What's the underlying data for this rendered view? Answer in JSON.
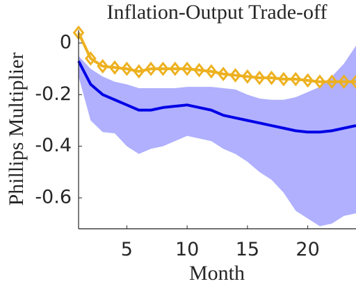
{
  "chart_data": {
    "type": "line",
    "title": "Inflation-Output Trade-off",
    "xlabel": "Month",
    "ylabel": "Phillips Multiplier",
    "x": [
      1,
      2,
      3,
      4,
      5,
      6,
      7,
      8,
      9,
      10,
      11,
      12,
      13,
      14,
      15,
      16,
      17,
      18,
      19,
      20,
      21,
      22,
      23,
      24
    ],
    "band": {
      "color": "#b0b0ff",
      "upper": [
        -0.05,
        -0.1,
        -0.13,
        -0.15,
        -0.16,
        -0.175,
        -0.175,
        -0.175,
        -0.175,
        -0.17,
        -0.17,
        -0.17,
        -0.175,
        -0.18,
        -0.2,
        -0.215,
        -0.22,
        -0.22,
        -0.21,
        -0.19,
        -0.17,
        -0.13,
        -0.08,
        -0.01
      ],
      "lower": [
        -0.13,
        -0.3,
        -0.345,
        -0.35,
        -0.4,
        -0.43,
        -0.41,
        -0.4,
        -0.38,
        -0.36,
        -0.37,
        -0.38,
        -0.41,
        -0.43,
        -0.46,
        -0.5,
        -0.53,
        -0.58,
        -0.65,
        -0.68,
        -0.71,
        -0.7,
        -0.67,
        -0.66
      ]
    },
    "series": [
      {
        "color": "#0000e6",
        "marker": "none",
        "values": [
          -0.07,
          -0.16,
          -0.2,
          -0.22,
          -0.24,
          -0.26,
          -0.26,
          -0.25,
          -0.245,
          -0.24,
          -0.25,
          -0.26,
          -0.28,
          -0.29,
          -0.3,
          -0.31,
          -0.32,
          -0.33,
          -0.34,
          -0.345,
          -0.345,
          -0.34,
          -0.33,
          -0.32
        ]
      },
      {
        "color": "#edb120",
        "marker": "diamond",
        "values": [
          0.04,
          -0.06,
          -0.09,
          -0.095,
          -0.1,
          -0.11,
          -0.1,
          -0.1,
          -0.1,
          -0.1,
          -0.105,
          -0.11,
          -0.12,
          -0.125,
          -0.13,
          -0.135,
          -0.135,
          -0.14,
          -0.14,
          -0.145,
          -0.15,
          -0.15,
          -0.15,
          -0.15
        ]
      }
    ],
    "xlim": [
      1,
      24
    ],
    "xticks": [
      5,
      10,
      15,
      20
    ],
    "ylim": [
      -0.72,
      0.05
    ],
    "yticks": [
      -0.6,
      -0.4,
      -0.2,
      0
    ]
  }
}
